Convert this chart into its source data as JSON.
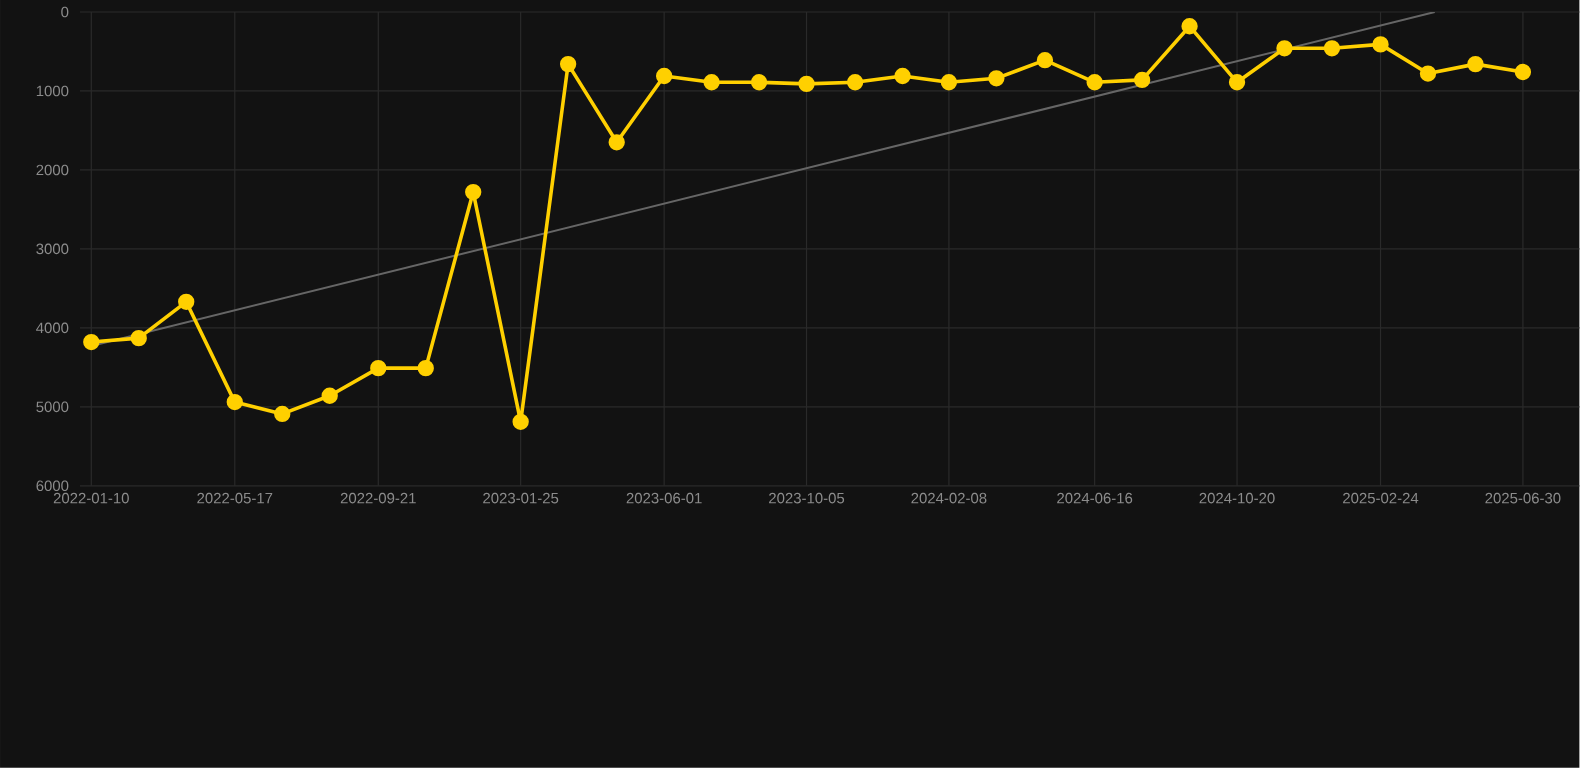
{
  "chart_data": {
    "type": "line",
    "x": [
      "2022-01-10",
      "2022-02-21",
      "2022-04-04",
      "2022-05-17",
      "2022-06-28",
      "2022-08-09",
      "2022-09-21",
      "2022-11-02",
      "2022-12-14",
      "2023-01-25",
      "2023-03-08",
      "2023-04-20",
      "2023-06-01",
      "2023-07-13",
      "2023-08-24",
      "2023-10-05",
      "2023-11-17",
      "2023-12-29",
      "2024-02-08",
      "2024-03-21",
      "2024-05-03",
      "2024-06-16",
      "2024-07-28",
      "2024-09-08",
      "2024-10-20",
      "2024-12-01",
      "2025-01-12",
      "2025-02-24",
      "2025-04-07",
      "2025-05-19",
      "2025-06-30"
    ],
    "series": [
      {
        "color": "#ffd000",
        "marker": "circle",
        "values": [
          4180,
          4130,
          3670,
          4940,
          5090,
          4860,
          4510,
          4510,
          2280,
          5190,
          660,
          1650,
          810,
          890,
          890,
          910,
          890,
          810,
          890,
          840,
          610,
          890,
          860,
          180,
          890,
          460,
          460,
          410,
          780,
          660,
          760
        ]
      },
      {
        "type": "line",
        "color": "#666666",
        "marker": "none",
        "x": [
          "2022-01-10",
          "2025-04-13"
        ],
        "values": [
          4230,
          0
        ]
      }
    ],
    "xlim": [
      "2021-12-31",
      "2025-08-19"
    ],
    "xticks": [
      "2022-01-10",
      "2022-05-17",
      "2022-09-21",
      "2023-01-25",
      "2023-06-01",
      "2023-10-05",
      "2024-02-08",
      "2024-06-16",
      "2024-10-20",
      "2025-02-24",
      "2025-06-30"
    ],
    "ylim": [
      6000,
      0
    ],
    "yticks": [
      0,
      1000,
      2000,
      3000,
      4000,
      5000,
      6000
    ],
    "grid": true
  }
}
